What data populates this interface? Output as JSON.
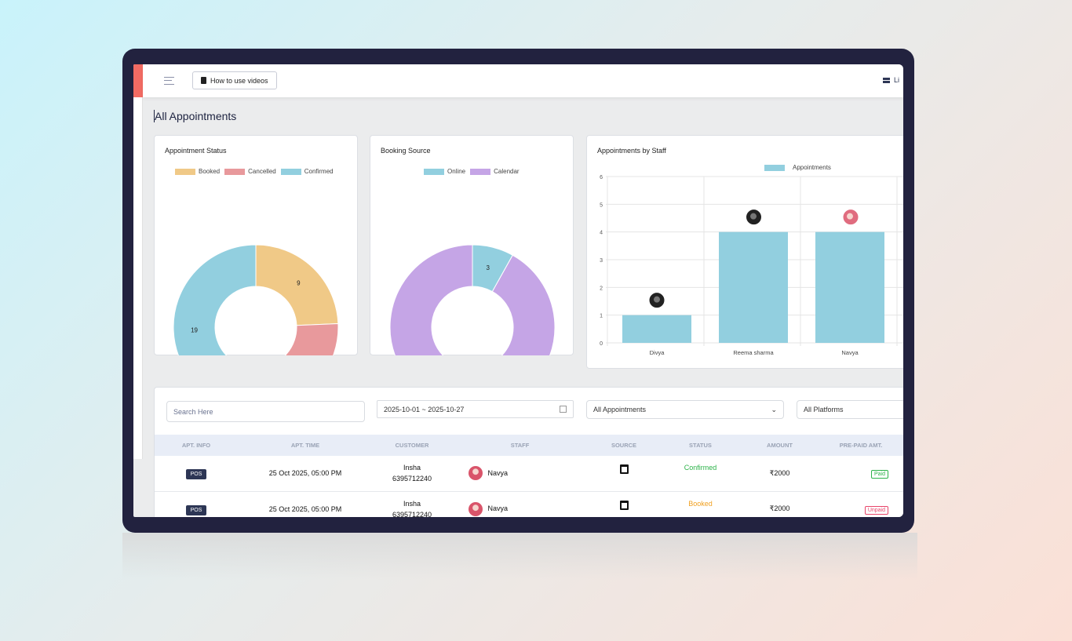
{
  "header": {
    "videos_button": "How to use videos",
    "right_label": "Li"
  },
  "page_title": "All Appointments",
  "colors": {
    "booked": "#f0c987",
    "cancelled": "#e8999c",
    "confirmed": "#92cfdf",
    "online": "#92cfdf",
    "calendar": "#c5a5e6",
    "bar": "#92cfdf"
  },
  "chart_data": [
    {
      "type": "pie",
      "title": "Appointment Status",
      "donut": true,
      "categories": [
        "Booked",
        "Cancelled",
        "Confirmed"
      ],
      "values": [
        9,
        9,
        19
      ],
      "legend": "top"
    },
    {
      "type": "pie",
      "title": "Booking Source",
      "donut": true,
      "categories": [
        "Online",
        "Calendar"
      ],
      "values": [
        3,
        34
      ],
      "legend": "top"
    },
    {
      "type": "bar",
      "title": "Appointments by Staff",
      "categories": [
        "Divya",
        "Reema sharma",
        "Navya"
      ],
      "series": [
        {
          "name": "Appointments",
          "values": [
            1,
            4,
            4
          ]
        }
      ],
      "ylim": [
        0,
        6
      ],
      "yticks": [
        0,
        1,
        2,
        3,
        4,
        5,
        6
      ],
      "grid": true,
      "legend": "top"
    }
  ],
  "filters": {
    "search_placeholder": "Search Here",
    "date_range": "2025-10-01 ~ 2025-10-27",
    "appointments_select": "All Appointments",
    "platforms_select": "All Platforms"
  },
  "table": {
    "columns": [
      "APT. INFO",
      "APT. TIME",
      "CUSTOMER",
      "STAFF",
      "SOURCE",
      "STATUS",
      "AMOUNT",
      "PRE-PAID AMT."
    ],
    "rows": [
      {
        "info": "POS",
        "time": "25 Oct 2025, 05:00 PM",
        "customer": "Insha",
        "phone": "6395712240",
        "staff": "Navya",
        "source": "calendar-icon",
        "status": "Confirmed",
        "status_color": "#2db34a",
        "amount": "₹2000",
        "prepaid": "Paid",
        "prepaid_color": "#2db34a"
      },
      {
        "info": "POS",
        "time": "25 Oct 2025, 05:00 PM",
        "customer": "Insha",
        "phone": "6395712240",
        "staff": "Navya",
        "source": "calendar-icon",
        "status": "Booked",
        "status_color": "#f0a020",
        "amount": "₹2000",
        "prepaid": "Unpaid",
        "prepaid_color": "#e8456a"
      }
    ]
  }
}
